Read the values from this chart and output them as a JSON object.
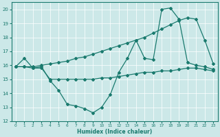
{
  "line1_x": [
    0,
    1,
    2,
    3,
    4,
    5,
    6,
    7,
    8,
    9,
    10,
    11,
    12,
    13,
    14,
    15,
    16,
    17,
    18,
    19,
    20,
    21,
    22,
    23
  ],
  "line1_y": [
    15.9,
    16.5,
    15.8,
    15.9,
    14.9,
    14.2,
    13.2,
    13.1,
    12.9,
    12.6,
    13.0,
    13.9,
    15.5,
    16.5,
    17.8,
    16.5,
    16.4,
    20.0,
    20.1,
    19.3,
    16.2,
    16.0,
    15.9,
    15.7
  ],
  "line2_x": [
    0,
    1,
    2,
    3,
    4,
    5,
    6,
    7,
    8,
    9,
    10,
    11,
    12,
    13,
    14,
    15,
    16,
    17,
    18,
    19,
    20,
    21,
    22,
    23
  ],
  "line2_y": [
    15.9,
    15.9,
    15.9,
    16.0,
    16.1,
    16.2,
    16.3,
    16.5,
    16.6,
    16.8,
    17.0,
    17.2,
    17.4,
    17.6,
    17.8,
    18.0,
    18.3,
    18.6,
    18.9,
    19.2,
    19.4,
    19.3,
    17.8,
    16.1
  ],
  "line3_x": [
    0,
    1,
    2,
    3,
    4,
    5,
    6,
    7,
    8,
    9,
    10,
    11,
    12,
    13,
    14,
    15,
    16,
    17,
    18,
    19,
    20,
    21,
    22,
    23
  ],
  "line3_y": [
    15.9,
    15.9,
    15.8,
    15.8,
    15.0,
    15.0,
    15.0,
    15.0,
    15.0,
    15.0,
    15.1,
    15.1,
    15.2,
    15.3,
    15.4,
    15.5,
    15.5,
    15.6,
    15.6,
    15.7,
    15.8,
    15.8,
    15.7,
    15.6
  ],
  "color": "#1a7a6e",
  "bg_color": "#cce8e8",
  "grid_color": "#ffffff",
  "xlabel": "Humidex (Indice chaleur)",
  "ylim": [
    12,
    20.5
  ],
  "xlim": [
    -0.5,
    23.5
  ],
  "yticks": [
    12,
    13,
    14,
    15,
    16,
    17,
    18,
    19,
    20
  ],
  "xticks": [
    0,
    1,
    2,
    3,
    4,
    5,
    6,
    7,
    8,
    9,
    10,
    11,
    12,
    13,
    14,
    15,
    16,
    17,
    18,
    19,
    20,
    21,
    22,
    23
  ]
}
